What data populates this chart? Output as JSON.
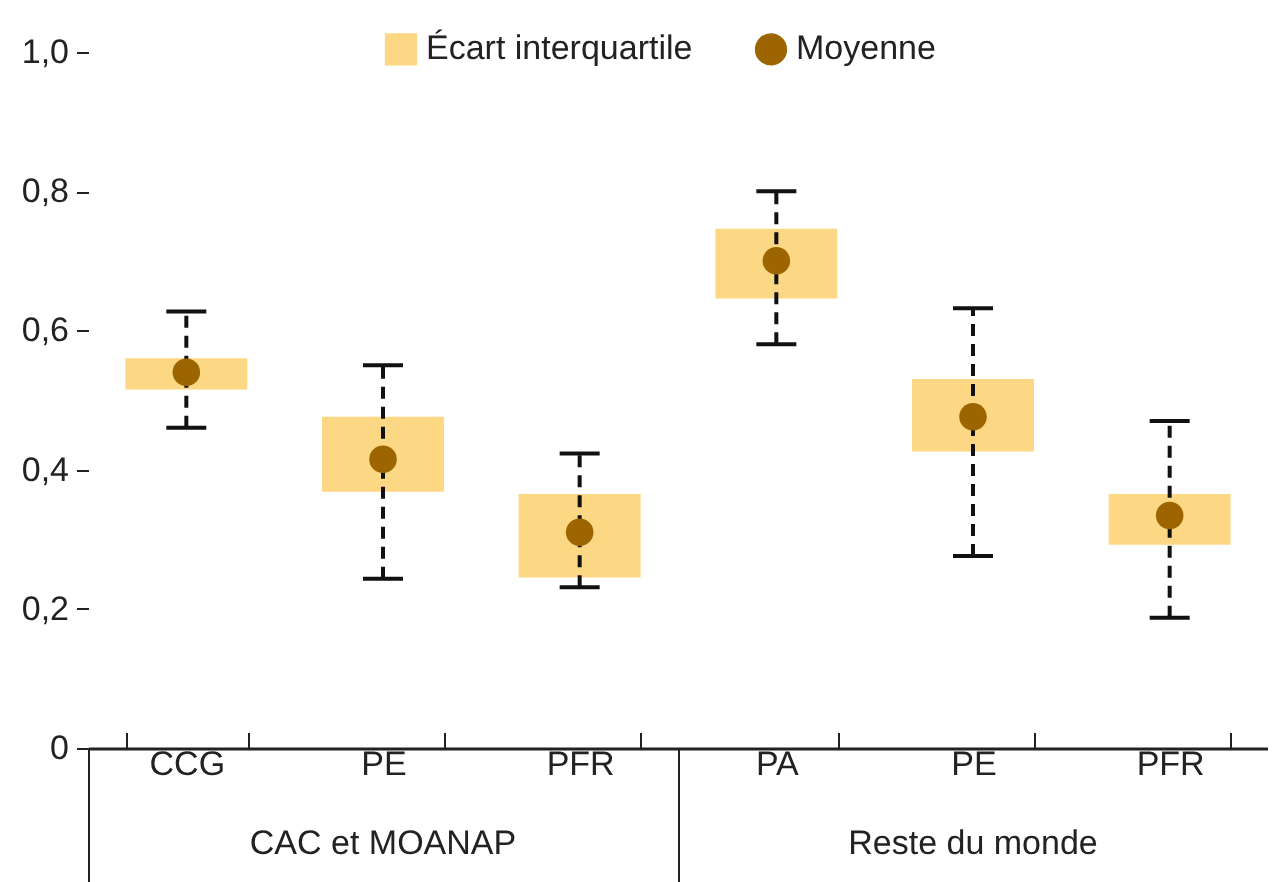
{
  "chart_data": {
    "type": "box",
    "categories": [
      "CCG",
      "PE",
      "PFR",
      "PA",
      "PE",
      "PFR"
    ],
    "series": [
      {
        "name": "Écart interquartile",
        "color": "#fdd884",
        "boxes": [
          {
            "low": 0.46,
            "q1": 0.515,
            "q3": 0.56,
            "high": 0.627
          },
          {
            "low": 0.243,
            "q1": 0.368,
            "q3": 0.476,
            "high": 0.55
          },
          {
            "low": 0.231,
            "q1": 0.245,
            "q3": 0.365,
            "high": 0.423
          },
          {
            "low": 0.58,
            "q1": 0.646,
            "q3": 0.746,
            "high": 0.8
          },
          {
            "low": 0.276,
            "q1": 0.426,
            "q3": 0.53,
            "high": 0.632
          },
          {
            "low": 0.187,
            "q1": 0.292,
            "q3": 0.365,
            "high": 0.47
          }
        ]
      },
      {
        "name": "Moyenne",
        "type": "scatter",
        "color": "#9c6500",
        "marker": "circle",
        "values": [
          0.54,
          0.415,
          0.31,
          0.7,
          0.476,
          0.334
        ]
      }
    ],
    "ylim": [
      0,
      1.0
    ],
    "yticks": [
      0,
      {
        "value": 0.2,
        "label": "0,2"
      },
      {
        "value": 0.4,
        "label": "0,4"
      },
      {
        "value": 0.6,
        "label": "0,6"
      },
      {
        "value": 0.8,
        "label": "0,8"
      },
      {
        "value": 1.0,
        "label": "1,0"
      }
    ],
    "annotations": [
      "CAC et MOANAP",
      "Reste du monde"
    ],
    "legend": "top"
  }
}
